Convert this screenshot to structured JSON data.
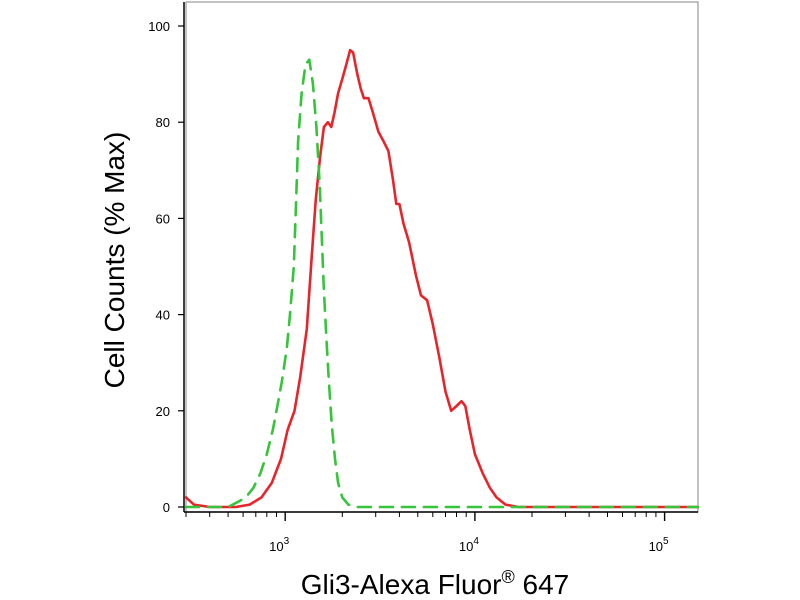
{
  "chart_data": {
    "type": "line",
    "xlabel": "Gli3-Alexa Fluor",
    "xlabel_superscript": "®",
    "xlabel_suffix": " 647",
    "ylabel": "Cell Counts (% Max)",
    "x_scale": "log",
    "xlim": [
      300,
      150000
    ],
    "ylim": [
      0,
      100
    ],
    "y_ticks": [
      "0",
      "20",
      "40",
      "60",
      "80",
      "100"
    ],
    "x_ticks": [
      {
        "base": "10",
        "exp": "3",
        "value": 1000
      },
      {
        "base": "10",
        "exp": "4",
        "value": 10000
      },
      {
        "base": "10",
        "exp": "5",
        "value": 100000
      }
    ],
    "grid": false,
    "series": [
      {
        "color": "#e8242b",
        "dash": "solid",
        "points": [
          [
            300,
            2
          ],
          [
            330,
            0.5
          ],
          [
            400,
            0
          ],
          [
            550,
            0
          ],
          [
            650,
            0.5
          ],
          [
            750,
            2
          ],
          [
            850,
            5
          ],
          [
            950,
            10
          ],
          [
            1030,
            16
          ],
          [
            1120,
            20
          ],
          [
            1200,
            27
          ],
          [
            1300,
            37
          ],
          [
            1380,
            52
          ],
          [
            1450,
            64
          ],
          [
            1530,
            73
          ],
          [
            1600,
            79
          ],
          [
            1680,
            80
          ],
          [
            1750,
            79
          ],
          [
            1820,
            82
          ],
          [
            1900,
            86
          ],
          [
            2000,
            89
          ],
          [
            2100,
            92
          ],
          [
            2200,
            95
          ],
          [
            2280,
            94.5
          ],
          [
            2400,
            90
          ],
          [
            2500,
            87
          ],
          [
            2600,
            85
          ],
          [
            2750,
            85
          ],
          [
            2900,
            82
          ],
          [
            3100,
            78
          ],
          [
            3300,
            76
          ],
          [
            3500,
            74
          ],
          [
            3700,
            68
          ],
          [
            3850,
            63
          ],
          [
            4000,
            63
          ],
          [
            4200,
            59
          ],
          [
            4500,
            55
          ],
          [
            4900,
            48
          ],
          [
            5200,
            44
          ],
          [
            5600,
            43
          ],
          [
            6000,
            38
          ],
          [
            6500,
            31
          ],
          [
            7000,
            24
          ],
          [
            7500,
            20
          ],
          [
            8000,
            21
          ],
          [
            8500,
            22
          ],
          [
            8900,
            21
          ],
          [
            9400,
            16
          ],
          [
            10000,
            11
          ],
          [
            11000,
            7
          ],
          [
            12000,
            4
          ],
          [
            13000,
            2
          ],
          [
            14500,
            0.5
          ],
          [
            17000,
            0
          ],
          [
            40000,
            0
          ],
          [
            150000,
            0
          ]
        ]
      },
      {
        "color": "#35c43a",
        "dash": "dashed",
        "points": [
          [
            300,
            0
          ],
          [
            500,
            0
          ],
          [
            560,
            1
          ],
          [
            620,
            2
          ],
          [
            680,
            4
          ],
          [
            740,
            7
          ],
          [
            800,
            11
          ],
          [
            860,
            16
          ],
          [
            900,
            20
          ],
          [
            960,
            26
          ],
          [
            1020,
            33
          ],
          [
            1060,
            40
          ],
          [
            1110,
            50
          ],
          [
            1140,
            63
          ],
          [
            1170,
            76
          ],
          [
            1220,
            86
          ],
          [
            1280,
            92
          ],
          [
            1340,
            93
          ],
          [
            1400,
            88
          ],
          [
            1460,
            79
          ],
          [
            1520,
            67
          ],
          [
            1560,
            56
          ],
          [
            1600,
            45
          ],
          [
            1650,
            35
          ],
          [
            1700,
            26
          ],
          [
            1760,
            17
          ],
          [
            1830,
            10
          ],
          [
            1900,
            5
          ],
          [
            2000,
            2
          ],
          [
            2150,
            0.5
          ],
          [
            2400,
            0
          ],
          [
            150000,
            0
          ]
        ]
      }
    ]
  }
}
